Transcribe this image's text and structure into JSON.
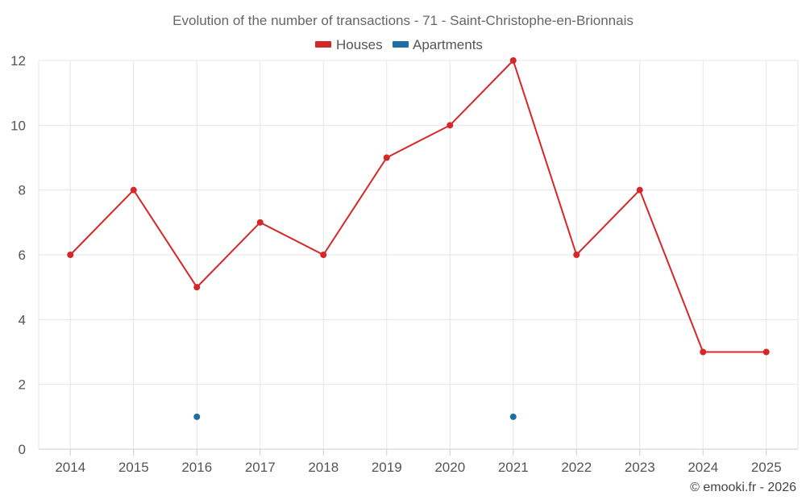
{
  "chart_data": {
    "type": "line",
    "title": "Evolution of the number of transactions - 71 - Saint-Christophe-en-Brionnais",
    "categories": [
      "2014",
      "2015",
      "2016",
      "2017",
      "2018",
      "2019",
      "2020",
      "2021",
      "2022",
      "2023",
      "2024",
      "2025"
    ],
    "series": [
      {
        "name": "Houses",
        "color": "#d62728",
        "values": [
          6,
          8,
          5,
          7,
          6,
          9,
          10,
          12,
          6,
          8,
          3,
          3
        ]
      },
      {
        "name": "Apartments",
        "color": "#1f6ea3",
        "values": [
          null,
          null,
          1,
          null,
          null,
          null,
          null,
          1,
          null,
          null,
          null,
          null
        ]
      }
    ],
    "ylim": [
      0,
      12
    ],
    "yticks": [
      "0",
      "2",
      "4",
      "6",
      "8",
      "10",
      "12"
    ],
    "xlabel": "",
    "ylabel": "",
    "grid": true,
    "legend": "top-center"
  },
  "credit": "© emooki.fr - 2026"
}
